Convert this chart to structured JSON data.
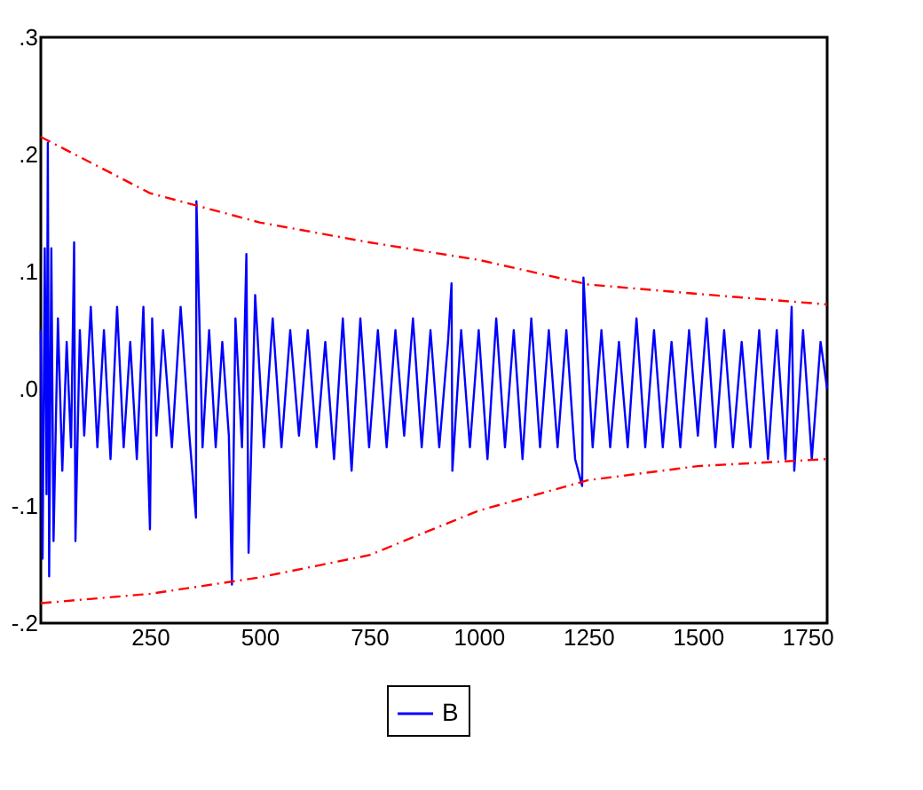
{
  "chart_data": {
    "type": "line",
    "xlim": [
      1,
      1795
    ],
    "ylim": [
      -0.2,
      0.3
    ],
    "xticks": [
      250,
      500,
      750,
      1000,
      1250,
      1500,
      1750
    ],
    "yticks": [
      {
        "value": 0.3,
        "label": ".3"
      },
      {
        "value": 0.2,
        "label": ".2"
      },
      {
        "value": 0.1,
        "label": ".1"
      },
      {
        "value": 0,
        "label": ".0"
      },
      {
        "value": -0.1,
        "label": "-.1"
      },
      {
        "value": -0.2,
        "label": "-.2"
      }
    ],
    "grid": false,
    "legend": "bottom",
    "marker": "none",
    "series": [
      {
        "name": "B",
        "color": "#0000ff",
        "line_style": "solid",
        "x": [
          1,
          5,
          10,
          14,
          17,
          20,
          25,
          30,
          40,
          50,
          60,
          70,
          77,
          80,
          90,
          100,
          115,
          130,
          145,
          160,
          175,
          190,
          205,
          220,
          235,
          250,
          255,
          265,
          280,
          300,
          320,
          340,
          355,
          356,
          370,
          385,
          400,
          415,
          430,
          437,
          445,
          460,
          470,
          475,
          490,
          510,
          530,
          550,
          570,
          590,
          610,
          630,
          650,
          670,
          690,
          710,
          730,
          750,
          770,
          790,
          810,
          830,
          850,
          870,
          890,
          910,
          930,
          938,
          940,
          960,
          980,
          1000,
          1020,
          1040,
          1060,
          1080,
          1100,
          1120,
          1140,
          1160,
          1180,
          1200,
          1220,
          1236,
          1239,
          1260,
          1280,
          1300,
          1320,
          1340,
          1360,
          1380,
          1400,
          1420,
          1440,
          1460,
          1480,
          1500,
          1520,
          1540,
          1560,
          1580,
          1600,
          1620,
          1640,
          1660,
          1680,
          1700,
          1714,
          1720,
          1740,
          1760,
          1780,
          1795
        ],
        "values": [
          0.05,
          -0.145,
          0.12,
          -0.09,
          0.21,
          -0.16,
          0.12,
          -0.13,
          0.06,
          -0.07,
          0.04,
          -0.05,
          0.125,
          -0.13,
          0.05,
          -0.04,
          0.07,
          -0.05,
          0.05,
          -0.06,
          0.07,
          -0.05,
          0.04,
          -0.06,
          0.07,
          -0.12,
          0.06,
          -0.04,
          0.05,
          -0.05,
          0.07,
          -0.04,
          -0.11,
          0.16,
          -0.05,
          0.05,
          -0.05,
          0.04,
          -0.04,
          -0.167,
          0.06,
          -0.05,
          0.115,
          -0.14,
          0.08,
          -0.05,
          0.06,
          -0.05,
          0.05,
          -0.04,
          0.05,
          -0.05,
          0.04,
          -0.06,
          0.06,
          -0.07,
          0.06,
          -0.05,
          0.05,
          -0.05,
          0.05,
          -0.04,
          0.06,
          -0.05,
          0.05,
          -0.05,
          0.04,
          0.09,
          -0.07,
          0.05,
          -0.05,
          0.05,
          -0.06,
          0.06,
          -0.05,
          0.05,
          -0.06,
          0.06,
          -0.05,
          0.05,
          -0.05,
          0.05,
          -0.06,
          -0.083,
          0.095,
          -0.05,
          0.05,
          -0.05,
          0.04,
          -0.05,
          0.06,
          -0.05,
          0.05,
          -0.05,
          0.04,
          -0.05,
          0.05,
          -0.04,
          0.06,
          -0.05,
          0.05,
          -0.05,
          0.04,
          -0.05,
          0.05,
          -0.06,
          0.05,
          -0.06,
          0.07,
          -0.07,
          0.05,
          -0.06,
          0.04,
          0.0
        ]
      },
      {
        "color": "#ff0000",
        "line_style": "dashed",
        "x": [
          1,
          250,
          500,
          750,
          1000,
          1250,
          1500,
          1795
        ],
        "values": [
          0.215,
          0.167,
          0.142,
          0.125,
          0.11,
          0.089,
          0.081,
          0.072
        ]
      },
      {
        "color": "#ff0000",
        "line_style": "dashed",
        "x": [
          1,
          250,
          500,
          750,
          1000,
          1250,
          1500,
          1795
        ],
        "values": [
          -0.183,
          -0.175,
          -0.161,
          -0.142,
          -0.104,
          -0.078,
          -0.066,
          -0.06
        ]
      }
    ]
  }
}
